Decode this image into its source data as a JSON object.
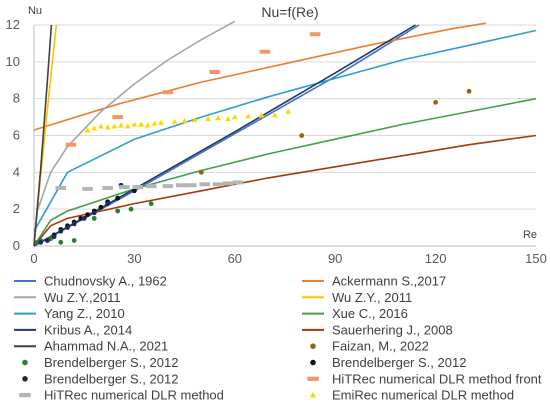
{
  "chart_data": {
    "type": "scatter",
    "title": "Nu=f(Re)",
    "xlabel": "Re",
    "ylabel": "Nu",
    "xlim": [
      0,
      150
    ],
    "ylim": [
      0,
      12
    ],
    "xticks": [
      "0",
      "30",
      "60",
      "90",
      "120",
      "150"
    ],
    "yticks": [
      "0",
      "2",
      "4",
      "6",
      "8",
      "10",
      "12"
    ],
    "grid": "horizontal",
    "legend_position": "bottom",
    "series": [
      {
        "name": "Chudnovsky A., 1962",
        "kind": "line",
        "color": "#4472C4",
        "x": [
          0,
          30,
          60,
          90,
          115
        ],
        "y": [
          0,
          3.0,
          6.1,
          9.2,
          12.0
        ]
      },
      {
        "name": "Ackermann S.,2017",
        "kind": "line",
        "color": "#ED7D31",
        "x": [
          0,
          25,
          50,
          75,
          100,
          125,
          135
        ],
        "y": [
          6.3,
          7.7,
          8.9,
          9.9,
          10.9,
          11.8,
          12.1
        ]
      },
      {
        "name": "Wu Z.Y.,2011",
        "kind": "line",
        "color": "#A5A5A5",
        "x": [
          0,
          1,
          5,
          10,
          20,
          30,
          40,
          50,
          60
        ],
        "y": [
          0,
          1.9,
          4.0,
          5.4,
          7.3,
          8.8,
          10.1,
          11.2,
          12.2
        ]
      },
      {
        "name": "Wu Z.Y., 2011",
        "kind": "line",
        "color": "#FFC000",
        "x": [
          0,
          2,
          4,
          5.5,
          6.7
        ],
        "y": [
          0,
          3.8,
          7.4,
          10.0,
          12.0
        ]
      },
      {
        "name": "Yang Z., 2010",
        "kind": "line",
        "color": "#2E9DD4",
        "x": [
          0,
          10,
          30,
          50,
          70,
          90,
          110,
          130,
          150
        ],
        "y": [
          0.8,
          4.0,
          5.8,
          7.0,
          8.1,
          9.1,
          10.1,
          10.9,
          11.7
        ]
      },
      {
        "name": "Xue C., 2016",
        "kind": "line",
        "color": "#43A047",
        "x": [
          0,
          5,
          10,
          20,
          30,
          50,
          70,
          90,
          110,
          130,
          150
        ],
        "y": [
          0,
          1.4,
          1.9,
          2.5,
          3.1,
          4.1,
          5.0,
          5.8,
          6.6,
          7.3,
          8.0
        ]
      },
      {
        "name": "Kribus A., 2014",
        "kind": "line",
        "color": "#203864",
        "x": [
          0,
          30,
          60,
          90,
          114
        ],
        "y": [
          0,
          3.1,
          6.2,
          9.4,
          12.0
        ]
      },
      {
        "name": "Sauerhering J., 2008",
        "kind": "line",
        "color": "#A33A0E",
        "x": [
          0,
          5,
          10,
          20,
          30,
          50,
          70,
          90,
          110,
          130,
          150
        ],
        "y": [
          0,
          1.1,
          1.5,
          1.9,
          2.3,
          3.0,
          3.7,
          4.3,
          4.9,
          5.5,
          6.0
        ]
      },
      {
        "name": "Ahammad N.A., 2021",
        "kind": "line",
        "color": "#404040",
        "x": [
          0,
          2,
          4,
          5.2
        ],
        "y": [
          0,
          4.2,
          9.0,
          12.0
        ]
      },
      {
        "name": "Faizan, M., 2022",
        "kind": "scatter",
        "marker": "circle",
        "color": "#8B6914",
        "x": [
          50,
          80,
          120,
          130
        ],
        "y": [
          4.0,
          6.0,
          7.8,
          8.4
        ]
      },
      {
        "name": "Brendelberger S., 2012",
        "kind": "scatter",
        "marker": "circle",
        "color": "#2E7D32",
        "x": [
          1,
          2,
          5,
          8,
          12,
          18,
          25,
          29,
          35
        ],
        "y": [
          0.2,
          0.3,
          0.4,
          0.2,
          0.3,
          1.5,
          1.9,
          2.0,
          2.3
        ]
      },
      {
        "name": "Brendelberger S., 2012",
        "kind": "scatter",
        "marker": "circle",
        "color": "#111111",
        "x": [
          4,
          6,
          8,
          10,
          12,
          14,
          16,
          18,
          20,
          22,
          25,
          30
        ],
        "y": [
          0.3,
          0.6,
          0.9,
          1.1,
          1.3,
          1.5,
          1.7,
          1.9,
          2.1,
          2.4,
          2.6,
          3.0
        ]
      },
      {
        "name": "Brendelberger S., 2012",
        "kind": "scatter",
        "marker": "circle",
        "color": "#1F2A5C",
        "x": [
          2,
          4,
          6,
          8,
          10,
          12,
          15,
          18,
          22,
          26
        ],
        "y": [
          0.2,
          0.3,
          0.5,
          0.8,
          1.0,
          1.2,
          1.5,
          1.8,
          2.3,
          3.3
        ]
      },
      {
        "name": "HiTRec numerical DLR method front",
        "kind": "scatter",
        "marker": "dash",
        "color": "#F4956A",
        "x": [
          11,
          25,
          40,
          54,
          69,
          84
        ],
        "y": [
          5.5,
          7.0,
          8.35,
          9.45,
          10.55,
          11.5
        ]
      },
      {
        "name": "HiTRec numerical DLR method",
        "kind": "scatter",
        "marker": "dash",
        "color": "#B4B4B4",
        "x": [
          8,
          16,
          22,
          27,
          31,
          35,
          40,
          44,
          47,
          51,
          55,
          58,
          61
        ],
        "y": [
          3.15,
          3.1,
          3.15,
          3.2,
          3.2,
          3.25,
          3.25,
          3.3,
          3.3,
          3.35,
          3.35,
          3.4,
          3.45
        ]
      },
      {
        "name": "EmiRec  numerical DLR method",
        "kind": "scatter",
        "marker": "triangle",
        "color": "#FFD700",
        "x": [
          16,
          18,
          20,
          22,
          24,
          26,
          28,
          30,
          32,
          34,
          36,
          38,
          42,
          45,
          48,
          52,
          55,
          58,
          60,
          64,
          68,
          72,
          76
        ],
        "y": [
          6.3,
          6.4,
          6.5,
          6.45,
          6.5,
          6.55,
          6.5,
          6.6,
          6.6,
          6.55,
          6.65,
          6.7,
          6.75,
          6.8,
          6.85,
          6.9,
          6.95,
          6.9,
          7.0,
          7.05,
          7.1,
          7.1,
          7.3
        ]
      }
    ]
  }
}
